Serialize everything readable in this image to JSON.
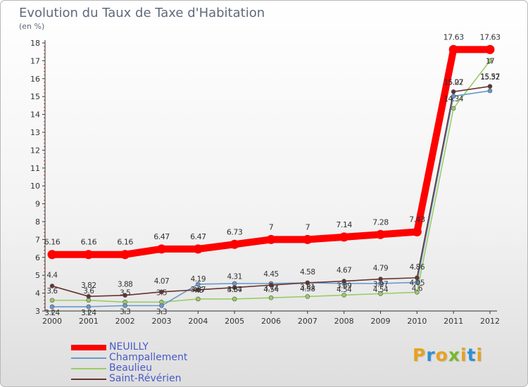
{
  "title": "Evolution du Taux de Taxe d'Habitation",
  "subtitle": "(en %)",
  "brand": {
    "text": "Proxiti",
    "colors": [
      "#e8a11f",
      "#2f8fd3",
      "#e8a11f",
      "#79b82a",
      "#e8a11f",
      "#2f8fd3",
      "#e8a11f"
    ]
  },
  "chart_data": {
    "type": "line",
    "title": "Evolution du Taux de Taxe d'Habitation",
    "ylabel": "(en %)",
    "xlabel": "",
    "x": [
      "2000",
      "2001",
      "2002",
      "2003",
      "2004",
      "2005",
      "2006",
      "2007",
      "2008",
      "2009",
      "2010",
      "2011",
      "2012"
    ],
    "ylim": [
      3,
      18
    ],
    "yticks": [
      "3",
      "4",
      "5",
      "6",
      "7",
      "8",
      "9",
      "10",
      "11",
      "12",
      "13",
      "14",
      "15",
      "16",
      "17",
      "18"
    ],
    "grid": false,
    "legend_placement": "bottom-left",
    "series": [
      {
        "name": "NEUILLY",
        "color": "#ff0000",
        "emphasis": true,
        "values": [
          6.16,
          6.16,
          6.16,
          6.47,
          6.47,
          6.73,
          7,
          7,
          7.14,
          7.28,
          7.43,
          17.63,
          17.63
        ],
        "labels": [
          "6.16",
          "6.16",
          "6.16",
          "6.47",
          "6.47",
          "6.73",
          "7",
          "7",
          "7.14",
          "7.28",
          "7.43",
          "17.63",
          "17.63"
        ]
      },
      {
        "name": "Champallement",
        "color": "#6699cc",
        "values": [
          3.24,
          3.24,
          3.3,
          3.3,
          4.5,
          4.54,
          4.54,
          4.58,
          4.54,
          4.54,
          4.6,
          15.02,
          15.32
        ],
        "labels": [
          "3.24",
          "3.24",
          "3.3",
          "3.3",
          "4.5",
          "4.54",
          "4.54",
          "4.58",
          "4.54",
          "4.54",
          "4.6",
          "15.02",
          "15.32"
        ]
      },
      {
        "name": "Beaulieu",
        "color": "#99cc66",
        "values": [
          3.6,
          3.6,
          3.5,
          3.5,
          3.67,
          3.67,
          3.74,
          3.81,
          3.89,
          3.97,
          4.05,
          14.34,
          17
        ],
        "labels": [
          "3.6",
          "3.6",
          "3.5",
          "3.5",
          "3.67",
          "3.67",
          "3.74",
          "3.81",
          "3.89",
          "3.97",
          "4.05",
          "14.34",
          "17"
        ]
      },
      {
        "name": "Saint-Révérien",
        "color": "#663333",
        "values": [
          4.4,
          3.82,
          3.88,
          4.07,
          4.19,
          4.31,
          4.45,
          4.58,
          4.67,
          4.79,
          4.86,
          15.27,
          15.57
        ],
        "labels": [
          "4.4",
          "3.82",
          "3.88",
          "4.07",
          "4.19",
          "4.31",
          "4.45",
          "4.58",
          "4.67",
          "4.79",
          "4.86",
          "15.27",
          "15.57"
        ]
      }
    ]
  }
}
